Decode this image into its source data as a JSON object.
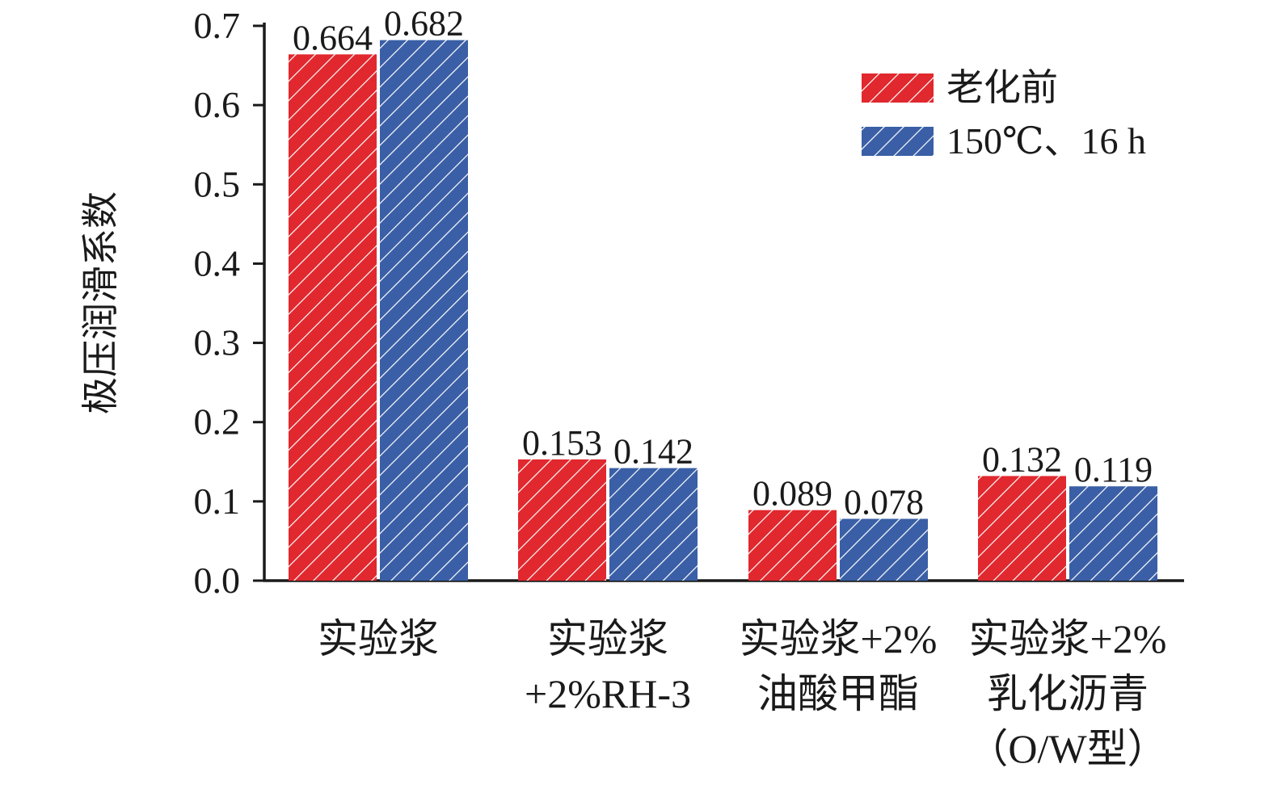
{
  "chart_data": {
    "type": "bar",
    "title": "",
    "xlabel": "",
    "ylabel": "极压润滑系数",
    "ylim": [
      0,
      0.7
    ],
    "yticks": [
      "0.0",
      "0.1",
      "0.2",
      "0.3",
      "0.4",
      "0.5",
      "0.6",
      "0.7"
    ],
    "categories": [
      [
        "实验浆"
      ],
      [
        "实验浆",
        "+2%RH-3"
      ],
      [
        "实验浆+2%",
        "油酸甲酯"
      ],
      [
        "实验浆+2%",
        "乳化沥青",
        "（O/W型）"
      ]
    ],
    "series": [
      {
        "name": "老化前",
        "values": [
          0.664,
          0.153,
          0.089,
          0.132
        ],
        "labels": [
          "0.664",
          "0.153",
          "0.089",
          "0.132"
        ],
        "color": "#e0282e"
      },
      {
        "name": "150℃、16 h",
        "values": [
          0.682,
          0.142,
          0.078,
          0.119
        ],
        "labels": [
          "0.682",
          "0.142",
          "0.078",
          "0.119"
        ],
        "color": "#3a5fa6"
      }
    ],
    "hatch": "diagonal-white",
    "grid": false,
    "legend_position": "top-right"
  }
}
